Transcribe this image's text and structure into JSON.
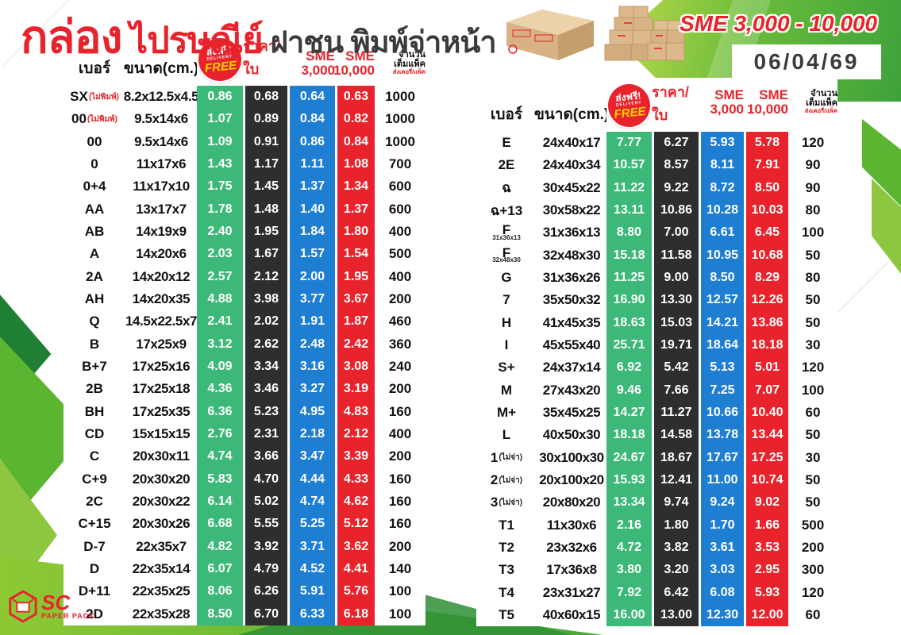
{
  "title": {
    "main": "กล่อง",
    "secondary": "ไปรษณีย์",
    "tertiary": "ฝาชน พิมพ์จ่าหน้า"
  },
  "banner": {
    "sme_range": "SME 3,000 - 10,000",
    "date": "06/04/69"
  },
  "header": {
    "no": "เบอร์",
    "size": "ขนาด(cm.)",
    "badge": {
      "line1": "ส่งฟรี!",
      "line2": "DELIVERY",
      "line3": "FREE"
    },
    "price": "ราคา/ใบ",
    "sme3_line1": "SME",
    "sme3_line2": "3,000",
    "sme10_line1": "SME",
    "sme10_line2": "10,000",
    "qty_line1": "จำนวน",
    "qty_line2": "เต็มแพ็ค",
    "qty_line3": "ส่งเคอรี่/แพ็ค"
  },
  "logo": {
    "abbr": "SC",
    "name": "PAPER PACK"
  },
  "colors": {
    "column_green": "#3cb878",
    "column_black": "#2e2e30",
    "column_blue": "#1e7ed2",
    "column_red": "#e8232b",
    "accent_red": "#e8232b",
    "badge_yellow": "#ffd200",
    "bg_green_light": "#a8ce38",
    "bg_green_dark": "#3da43c"
  },
  "left_table": {
    "rows": [
      {
        "no": "SX",
        "note": "(ไม่พิมพ์)",
        "size": "8.2x12.5x4.5",
        "free": "0.86",
        "price": "0.68",
        "sme3": "0.64",
        "sme10": "0.63",
        "qty": "1000"
      },
      {
        "no": "00",
        "note": "(ไม่พิมพ์)",
        "size": "9.5x14x6",
        "free": "1.07",
        "price": "0.89",
        "sme3": "0.84",
        "sme10": "0.82",
        "qty": "1000"
      },
      {
        "no": "00",
        "size": "9.5x14x6",
        "free": "1.09",
        "price": "0.91",
        "sme3": "0.86",
        "sme10": "0.84",
        "qty": "1000"
      },
      {
        "no": "0",
        "size": "11x17x6",
        "free": "1.43",
        "price": "1.17",
        "sme3": "1.11",
        "sme10": "1.08",
        "qty": "700"
      },
      {
        "no": "0+4",
        "size": "11x17x10",
        "free": "1.75",
        "price": "1.45",
        "sme3": "1.37",
        "sme10": "1.34",
        "qty": "600"
      },
      {
        "no": "AA",
        "size": "13x17x7",
        "free": "1.78",
        "price": "1.48",
        "sme3": "1.40",
        "sme10": "1.37",
        "qty": "600"
      },
      {
        "no": "AB",
        "size": "14x19x9",
        "free": "2.40",
        "price": "1.95",
        "sme3": "1.84",
        "sme10": "1.80",
        "qty": "400"
      },
      {
        "no": "A",
        "size": "14x20x6",
        "free": "2.03",
        "price": "1.67",
        "sme3": "1.57",
        "sme10": "1.54",
        "qty": "500"
      },
      {
        "no": "2A",
        "size": "14x20x12",
        "free": "2.57",
        "price": "2.12",
        "sme3": "2.00",
        "sme10": "1.95",
        "qty": "400"
      },
      {
        "no": "AH",
        "size": "14x20x35",
        "free": "4.88",
        "price": "3.98",
        "sme3": "3.77",
        "sme10": "3.67",
        "qty": "200"
      },
      {
        "no": "Q",
        "size": "14.5x22.5x7",
        "free": "2.41",
        "price": "2.02",
        "sme3": "1.91",
        "sme10": "1.87",
        "qty": "460"
      },
      {
        "no": "B",
        "size": "17x25x9",
        "free": "3.12",
        "price": "2.62",
        "sme3": "2.48",
        "sme10": "2.42",
        "qty": "360"
      },
      {
        "no": "B+7",
        "size": "17x25x16",
        "free": "4.09",
        "price": "3.34",
        "sme3": "3.16",
        "sme10": "3.08",
        "qty": "240"
      },
      {
        "no": "2B",
        "size": "17x25x18",
        "free": "4.36",
        "price": "3.46",
        "sme3": "3.27",
        "sme10": "3.19",
        "qty": "200"
      },
      {
        "no": "BH",
        "size": "17x25x35",
        "free": "6.36",
        "price": "5.23",
        "sme3": "4.95",
        "sme10": "4.83",
        "qty": "160"
      },
      {
        "no": "CD",
        "size": "15x15x15",
        "free": "2.76",
        "price": "2.31",
        "sme3": "2.18",
        "sme10": "2.12",
        "qty": "400"
      },
      {
        "no": "C",
        "size": "20x30x11",
        "free": "4.74",
        "price": "3.66",
        "sme3": "3.47",
        "sme10": "3.39",
        "qty": "200"
      },
      {
        "no": "C+9",
        "size": "20x30x20",
        "free": "5.83",
        "price": "4.70",
        "sme3": "4.44",
        "sme10": "4.33",
        "qty": "160"
      },
      {
        "no": "2C",
        "size": "20x30x22",
        "free": "6.14",
        "price": "5.02",
        "sme3": "4.74",
        "sme10": "4.62",
        "qty": "160"
      },
      {
        "no": "C+15",
        "size": "20x30x26",
        "free": "6.68",
        "price": "5.55",
        "sme3": "5.25",
        "sme10": "5.12",
        "qty": "160"
      },
      {
        "no": "D-7",
        "size": "22x35x7",
        "free": "4.82",
        "price": "3.92",
        "sme3": "3.71",
        "sme10": "3.62",
        "qty": "200"
      },
      {
        "no": "D",
        "size": "22x35x14",
        "free": "6.07",
        "price": "4.79",
        "sme3": "4.52",
        "sme10": "4.41",
        "qty": "140"
      },
      {
        "no": "D+11",
        "size": "22x35x25",
        "free": "8.06",
        "price": "6.26",
        "sme3": "5.91",
        "sme10": "5.76",
        "qty": "100"
      },
      {
        "no": "2D",
        "size": "22x35x28",
        "free": "8.50",
        "price": "6.70",
        "sme3": "6.33",
        "sme10": "6.18",
        "qty": "100"
      }
    ]
  },
  "right_table": {
    "rows": [
      {
        "no": "E",
        "size": "24x40x17",
        "free": "7.77",
        "price": "6.27",
        "sme3": "5.93",
        "sme10": "5.78",
        "qty": "120"
      },
      {
        "no": "2E",
        "size": "24x40x34",
        "free": "10.57",
        "price": "8.57",
        "sme3": "8.11",
        "sme10": "7.91",
        "qty": "90"
      },
      {
        "no": "ฉ",
        "size": "30x45x22",
        "free": "11.22",
        "price": "9.22",
        "sme3": "8.72",
        "sme10": "8.50",
        "qty": "90"
      },
      {
        "no": "ฉ+13",
        "size": "30x58x22",
        "free": "13.11",
        "price": "10.86",
        "sme3": "10.28",
        "sme10": "10.03",
        "qty": "80"
      },
      {
        "no": "F",
        "sub": "31x36x13",
        "size": "31x36x13",
        "free": "8.80",
        "price": "7.00",
        "sme3": "6.61",
        "sme10": "6.45",
        "qty": "100"
      },
      {
        "no": "F",
        "sub": "32x48x30",
        "size": "32x48x30",
        "free": "15.18",
        "price": "11.58",
        "sme3": "10.95",
        "sme10": "10.68",
        "qty": "50"
      },
      {
        "no": "G",
        "size": "31x36x26",
        "free": "11.25",
        "price": "9.00",
        "sme3": "8.50",
        "sme10": "8.29",
        "qty": "80"
      },
      {
        "no": "7",
        "size": "35x50x32",
        "free": "16.90",
        "price": "13.30",
        "sme3": "12.57",
        "sme10": "12.26",
        "qty": "50"
      },
      {
        "no": "H",
        "size": "41x45x35",
        "free": "18.63",
        "price": "15.03",
        "sme3": "14.21",
        "sme10": "13.86",
        "qty": "50"
      },
      {
        "no": "I",
        "size": "45x55x40",
        "free": "25.71",
        "price": "19.71",
        "sme3": "18.64",
        "sme10": "18.18",
        "qty": "30"
      },
      {
        "no": "S+",
        "size": "24x37x14",
        "free": "6.92",
        "price": "5.42",
        "sme3": "5.13",
        "sme10": "5.01",
        "qty": "120"
      },
      {
        "no": "M",
        "size": "27x43x20",
        "free": "9.46",
        "price": "7.66",
        "sme3": "7.25",
        "sme10": "7.07",
        "qty": "100"
      },
      {
        "no": "M+",
        "size": "35x45x25",
        "free": "14.27",
        "price": "11.27",
        "sme3": "10.66",
        "sme10": "10.40",
        "qty": "60"
      },
      {
        "no": "L",
        "size": "40x50x30",
        "free": "18.18",
        "price": "14.58",
        "sme3": "13.78",
        "sme10": "13.44",
        "qty": "50"
      },
      {
        "no": "1",
        "note": "(ไม่จ่า)",
        "note_dark": true,
        "size": "30x100x30",
        "free": "24.67",
        "price": "18.67",
        "sme3": "17.67",
        "sme10": "17.25",
        "qty": "30"
      },
      {
        "no": "2",
        "note": "(ไม่จ่า)",
        "note_dark": true,
        "size": "20x100x20",
        "free": "15.93",
        "price": "12.41",
        "sme3": "11.00",
        "sme10": "10.74",
        "qty": "50"
      },
      {
        "no": "3",
        "note": "(ไม่จ่า)",
        "note_dark": true,
        "size": "20x80x20",
        "free": "13.34",
        "price": "9.74",
        "sme3": "9.24",
        "sme10": "9.02",
        "qty": "50"
      },
      {
        "no": "T1",
        "size": "11x30x6",
        "free": "2.16",
        "price": "1.80",
        "sme3": "1.70",
        "sme10": "1.66",
        "qty": "500"
      },
      {
        "no": "T2",
        "size": "23x32x6",
        "free": "4.72",
        "price": "3.82",
        "sme3": "3.61",
        "sme10": "3.53",
        "qty": "200"
      },
      {
        "no": "T3",
        "size": "17x36x8",
        "free": "3.80",
        "price": "3.20",
        "sme3": "3.03",
        "sme10": "2.95",
        "qty": "300"
      },
      {
        "no": "T4",
        "size": "23x31x27",
        "free": "7.92",
        "price": "6.42",
        "sme3": "6.08",
        "sme10": "5.93",
        "qty": "120"
      },
      {
        "no": "T5",
        "size": "40x60x15",
        "free": "16.00",
        "price": "13.00",
        "sme3": "12.30",
        "sme10": "12.00",
        "qty": "60"
      }
    ]
  }
}
